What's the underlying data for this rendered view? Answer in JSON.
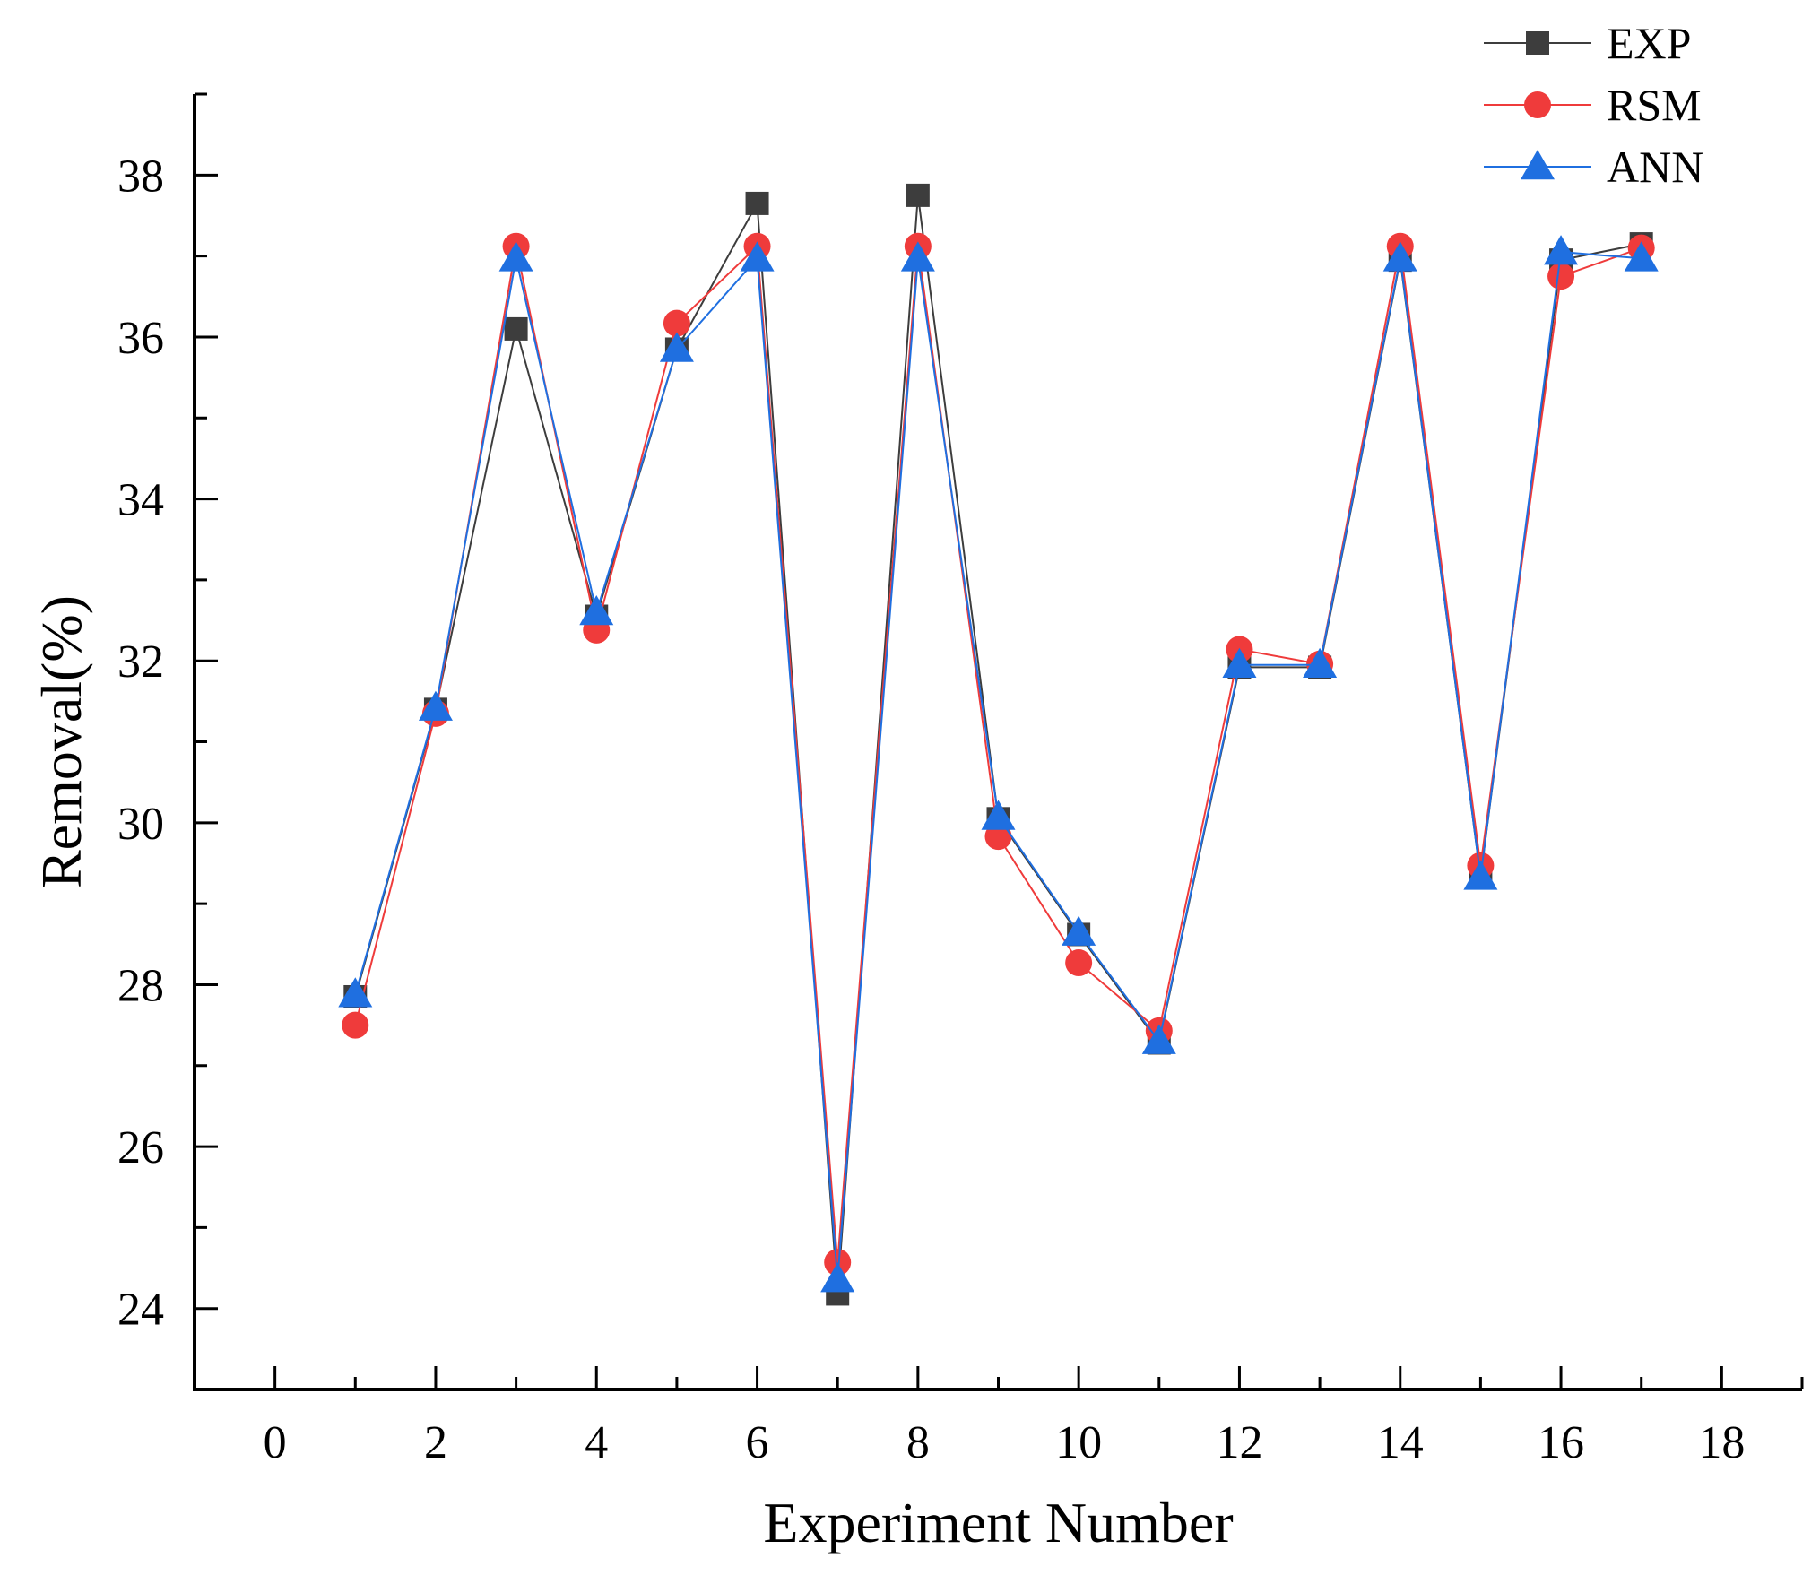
{
  "chart_data": {
    "type": "line",
    "title": "",
    "xlabel": "Experiment Number",
    "ylabel": "Removal(%)",
    "xlim": [
      -1,
      19
    ],
    "ylim": [
      23,
      39
    ],
    "xticks": [
      0,
      2,
      4,
      6,
      8,
      10,
      12,
      14,
      16,
      18
    ],
    "yticks": [
      24,
      26,
      28,
      30,
      32,
      34,
      36,
      38
    ],
    "legend_position": "top-right",
    "x": [
      1,
      2,
      3,
      4,
      5,
      6,
      7,
      8,
      9,
      10,
      11,
      12,
      13,
      14,
      15,
      16,
      17
    ],
    "series": [
      {
        "name": "EXP",
        "marker": "square",
        "color": "#3d3d3d",
        "values": [
          27.85,
          31.4,
          36.1,
          32.55,
          35.85,
          37.65,
          24.18,
          37.75,
          30.05,
          28.62,
          27.28,
          31.92,
          31.92,
          36.95,
          29.33,
          36.95,
          37.15
        ]
      },
      {
        "name": "RSM",
        "marker": "circle",
        "color": "#ef3b3b",
        "values": [
          27.5,
          31.35,
          37.12,
          32.38,
          36.17,
          37.12,
          24.57,
          37.12,
          29.83,
          28.27,
          27.43,
          32.14,
          31.96,
          37.12,
          29.47,
          36.75,
          37.1
        ]
      },
      {
        "name": "ANN",
        "marker": "triangle",
        "color": "#1f6fe0",
        "values": [
          27.88,
          31.42,
          36.97,
          32.6,
          35.85,
          36.97,
          24.36,
          36.97,
          30.07,
          28.64,
          27.3,
          31.95,
          31.95,
          36.97,
          29.33,
          37.05,
          36.97
        ]
      }
    ]
  }
}
